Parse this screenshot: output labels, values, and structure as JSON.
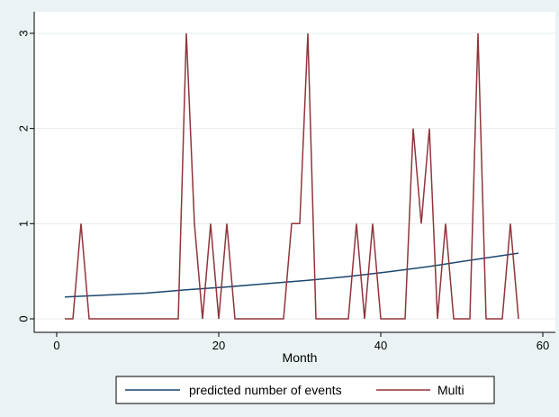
{
  "chart_data": {
    "type": "line",
    "xlabel": "Month",
    "ylabel": "",
    "xlim": [
      0,
      60
    ],
    "ylim": [
      0,
      3
    ],
    "xticks": [
      0,
      20,
      40,
      60
    ],
    "yticks": [
      0,
      1,
      2,
      3
    ],
    "grid": "horizontal",
    "legend_position": "bottom",
    "series": [
      {
        "name": "predicted number of events",
        "color": "#1a476f",
        "x": [
          1,
          6,
          11,
          16,
          21,
          26,
          31,
          36,
          41,
          46,
          51,
          57
        ],
        "y": [
          0.23,
          0.25,
          0.27,
          0.305,
          0.335,
          0.37,
          0.405,
          0.445,
          0.495,
          0.55,
          0.615,
          0.69
        ]
      },
      {
        "name": "Multi",
        "color": "#90353b",
        "x": [
          1,
          2,
          3,
          4,
          5,
          6,
          7,
          8,
          9,
          10,
          11,
          12,
          13,
          14,
          15,
          16,
          17,
          18,
          19,
          20,
          21,
          22,
          23,
          24,
          25,
          26,
          27,
          28,
          29,
          30,
          31,
          32,
          33,
          34,
          35,
          36,
          37,
          38,
          39,
          40,
          41,
          42,
          43,
          44,
          45,
          46,
          47,
          48,
          49,
          50,
          51,
          52,
          53,
          54,
          55,
          56,
          57
        ],
        "y": [
          0,
          0,
          1,
          0,
          0,
          0,
          0,
          0,
          0,
          0,
          0,
          0,
          0,
          0,
          0,
          3,
          1,
          0,
          1,
          0,
          1,
          0,
          0,
          0,
          0,
          0,
          0,
          0,
          1,
          1,
          3,
          0,
          0,
          0,
          0,
          0,
          1,
          0,
          1,
          0,
          0,
          0,
          0,
          2,
          1,
          2,
          0,
          1,
          0,
          0,
          0,
          3,
          0,
          0,
          0,
          1,
          0
        ]
      }
    ]
  }
}
